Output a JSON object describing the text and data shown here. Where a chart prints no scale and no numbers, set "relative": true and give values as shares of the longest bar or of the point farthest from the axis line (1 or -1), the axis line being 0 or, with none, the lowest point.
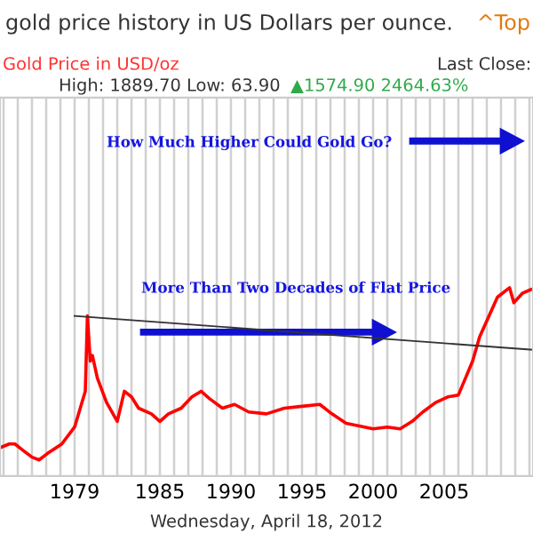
{
  "chart_data": {
    "type": "line",
    "title": "gold price history in US Dollars per ounce.",
    "subtitle": "Gold Price in USD/oz",
    "relative": true,
    "series": [
      {
        "x": [
          1973.75,
          1974.4,
          1974.8,
          1975.3,
          1976.0,
          1976.5,
          1977.1,
          1978.1,
          1979.0,
          1979.75,
          1979.9,
          1980.1,
          1980.25,
          1980.6,
          1981.25,
          1982.0,
          1982.5,
          1983.0,
          1983.5,
          1984.4,
          1985.0,
          1985.6,
          1986.5,
          1987.25,
          1987.9,
          1988.5,
          1989.4,
          1990.25,
          1991.25,
          1992.5,
          1993.75,
          1995.0,
          1996.25,
          1997.1,
          1998.1,
          1999.4,
          2000.0,
          2001.0,
          2001.9,
          2002.75,
          2003.5,
          2004.4,
          2005.25,
          2006.0,
          2006.5,
          2007.0,
          2007.5,
          2008.75,
          2009.6,
          2009.9,
          2010.5,
          2011.1
        ],
        "values": [
          0.15,
          0.17,
          0.17,
          0.14,
          0.1,
          0.085,
          0.12,
          0.17,
          0.26,
          0.45,
          0.85,
          0.61,
          0.64,
          0.52,
          0.39,
          0.29,
          0.45,
          0.42,
          0.36,
          0.33,
          0.29,
          0.33,
          0.36,
          0.42,
          0.45,
          0.41,
          0.36,
          0.38,
          0.34,
          0.33,
          0.36,
          0.37,
          0.38,
          0.33,
          0.28,
          0.26,
          0.25,
          0.26,
          0.25,
          0.29,
          0.34,
          0.39,
          0.42,
          0.43,
          0.52,
          0.61,
          0.74,
          0.95,
          1.0,
          0.92,
          0.97,
          0.99
        ],
        "color": "#ff0000"
      },
      {
        "type": "line",
        "x": [
          1979.0,
          2011.25
        ],
        "values": [
          0.85,
          0.67
        ],
        "color": "#333333"
      }
    ],
    "xlim": [
      1973.75,
      2011.25
    ],
    "xticks": [
      {
        "value": 1974,
        "label": null
      },
      {
        "value": 1975,
        "label": null
      },
      {
        "value": 1976,
        "label": null
      },
      {
        "value": 1977,
        "label": null
      },
      {
        "value": 1978,
        "label": null
      },
      1979,
      {
        "value": 1980,
        "label": null
      },
      {
        "value": 1981,
        "label": null
      },
      {
        "value": 1982,
        "label": null
      },
      {
        "value": 1983,
        "label": null
      },
      {
        "value": 1984,
        "label": null
      },
      1985,
      {
        "value": 1986,
        "label": null
      },
      {
        "value": 1987,
        "label": null
      },
      {
        "value": 1988,
        "label": null
      },
      {
        "value": 1989,
        "label": null
      },
      1990,
      {
        "value": 1991,
        "label": null
      },
      {
        "value": 1992,
        "label": null
      },
      {
        "value": 1993,
        "label": null
      },
      {
        "value": 1994,
        "label": null
      },
      1995,
      {
        "value": 1996,
        "label": null
      },
      {
        "value": 1997,
        "label": null
      },
      {
        "value": 1998,
        "label": null
      },
      {
        "value": 1999,
        "label": null
      },
      2000,
      {
        "value": 2001,
        "label": null
      },
      {
        "value": 2002,
        "label": null
      },
      {
        "value": 2003,
        "label": null
      },
      {
        "value": 2004,
        "label": null
      },
      2005,
      {
        "value": 2006,
        "label": null
      },
      {
        "value": 2007,
        "label": null
      },
      {
        "value": 2008,
        "label": null
      },
      {
        "value": 2009,
        "label": null
      },
      {
        "value": 2010,
        "label": null
      },
      {
        "value": 2011,
        "label": null
      }
    ],
    "grid": "x",
    "annotations": [
      "^Top",
      "Last Close:",
      "High: 1889.70 Low: 63.90",
      "▲1574.90 2464.63%",
      "How Much Higher Could Gold Go?",
      "More Than Two Decades of Flat Price",
      "Wednesday, April 18, 2012"
    ]
  }
}
